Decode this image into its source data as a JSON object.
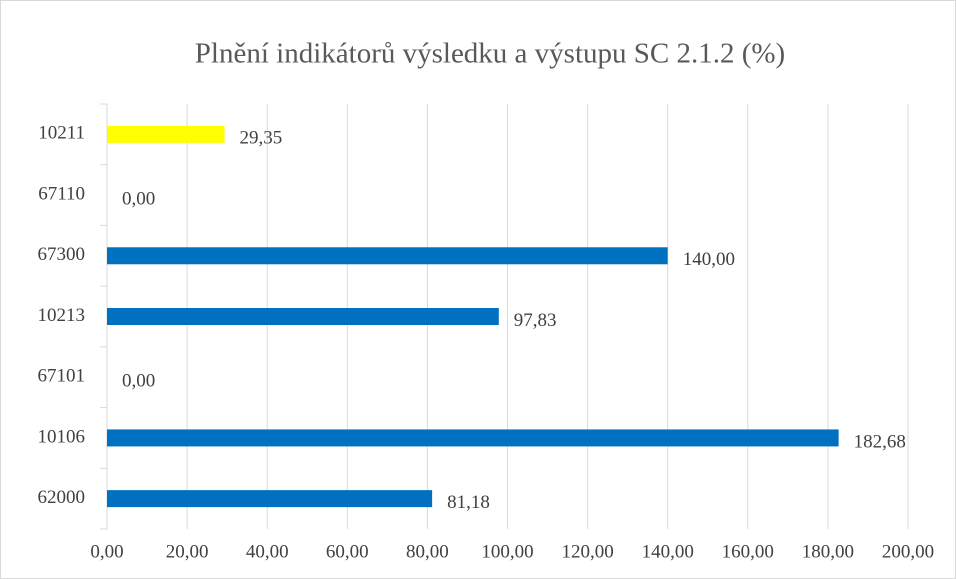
{
  "chart_data": {
    "type": "hbar",
    "title": "Plnění indikátorů výsledku a výstupu SC 2.1.2 (%)",
    "categories": [
      "10211",
      "67110",
      "67300",
      "10213",
      "67101",
      "10106",
      "62000"
    ],
    "values": [
      29.35,
      0,
      140,
      97.83,
      0,
      182.68,
      81.18
    ],
    "value_labels": [
      "29,35",
      "0,00",
      "140,00",
      "97,83",
      "0,00",
      "182,68",
      "81,18"
    ],
    "colors": [
      "#ffff00",
      "#0070c0",
      "#0070c0",
      "#0070c0",
      "#0070c0",
      "#0070c0",
      "#0070c0"
    ],
    "xlim": [
      0,
      200
    ],
    "xticks": [
      {
        "value": 0,
        "label": "0,00"
      },
      {
        "value": 20,
        "label": "20,00"
      },
      {
        "value": 40,
        "label": "40,00"
      },
      {
        "value": 60,
        "label": "60,00"
      },
      {
        "value": 80,
        "label": "80,00"
      },
      {
        "value": 100,
        "label": "100,00"
      },
      {
        "value": 120,
        "label": "120,00"
      },
      {
        "value": 140,
        "label": "140,00"
      },
      {
        "value": 160,
        "label": "160,00"
      },
      {
        "value": 180,
        "label": "180,00"
      },
      {
        "value": 200,
        "label": "200,00"
      }
    ],
    "grid": true
  }
}
